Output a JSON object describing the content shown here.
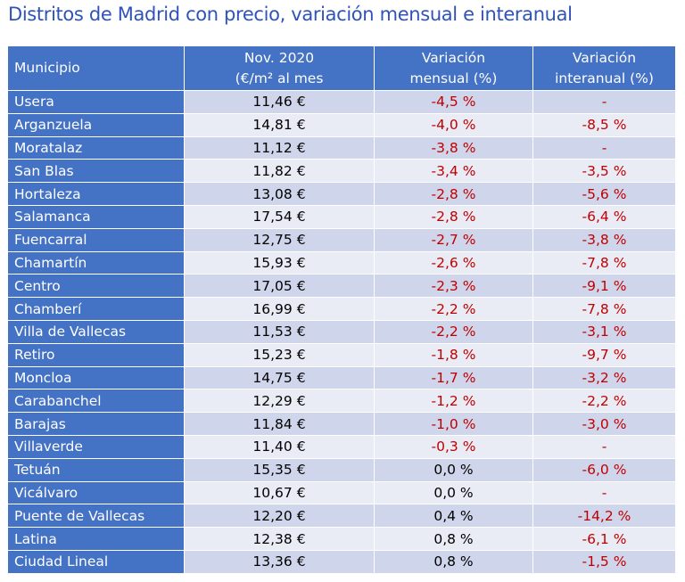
{
  "title": "Distritos de Madrid con precio, variación mensual e interanual",
  "headers": {
    "municipio": "Municipio",
    "price_line1": "Nov. 2020",
    "price_line2": "(€/m² al mes",
    "monthly_line1": "Variación",
    "monthly_line2": "mensual (%)",
    "annual_line1": "Variación",
    "annual_line2": "interanual (%)"
  },
  "colors": {
    "header_bg": "#4472c4",
    "row_odd": "#cfd5ea",
    "row_even": "#e9ebf5",
    "negative": "#c00000",
    "title": "#2f53b8"
  },
  "rows": [
    {
      "name": "Usera",
      "price": "11,46 €",
      "monthly": "-4,5 %",
      "annual": "-"
    },
    {
      "name": "Arganzuela",
      "price": "14,81 €",
      "monthly": "-4,0 %",
      "annual": "-8,5 %"
    },
    {
      "name": "Moratalaz",
      "price": "11,12 €",
      "monthly": "-3,8 %",
      "annual": "-"
    },
    {
      "name": "San Blas",
      "price": "11,82 €",
      "monthly": "-3,4 %",
      "annual": "-3,5 %"
    },
    {
      "name": "Hortaleza",
      "price": "13,08 €",
      "monthly": "-2,8 %",
      "annual": "-5,6 %"
    },
    {
      "name": "Salamanca",
      "price": "17,54 €",
      "monthly": "-2,8 %",
      "annual": "-6,4 %"
    },
    {
      "name": "Fuencarral",
      "price": "12,75 €",
      "monthly": "-2,7 %",
      "annual": "-3,8 %"
    },
    {
      "name": "Chamartín",
      "price": "15,93 €",
      "monthly": "-2,6 %",
      "annual": "-7,8 %"
    },
    {
      "name": "Centro",
      "price": "17,05 €",
      "monthly": "-2,3 %",
      "annual": "-9,1 %"
    },
    {
      "name": "Chamberí",
      "price": "16,99 €",
      "monthly": "-2,2 %",
      "annual": "-7,8 %"
    },
    {
      "name": "Villa de Vallecas",
      "price": "11,53 €",
      "monthly": "-2,2 %",
      "annual": "-3,1 %"
    },
    {
      "name": "Retiro",
      "price": "15,23 €",
      "monthly": "-1,8 %",
      "annual": "-9,7 %"
    },
    {
      "name": "Moncloa",
      "price": "14,75 €",
      "monthly": "-1,7 %",
      "annual": "-3,2 %"
    },
    {
      "name": "Carabanchel",
      "price": "12,29 €",
      "monthly": "-1,2 %",
      "annual": "-2,2 %"
    },
    {
      "name": "Barajas",
      "price": "11,84 €",
      "monthly": "-1,0 %",
      "annual": "-3,0 %"
    },
    {
      "name": "Villaverde",
      "price": "11,40 €",
      "monthly": "-0,3 %",
      "annual": "-"
    },
    {
      "name": "Tetuán",
      "price": "15,35 €",
      "monthly": "0,0 %",
      "annual": "-6,0 %"
    },
    {
      "name": "Vicálvaro",
      "price": "10,67 €",
      "monthly": "0,0 %",
      "annual": "-"
    },
    {
      "name": "Puente de Vallecas",
      "price": "12,20 €",
      "monthly": "0,4 %",
      "annual": "-14,2 %"
    },
    {
      "name": "Latina",
      "price": "12,38 €",
      "monthly": "0,8 %",
      "annual": "-6,1 %"
    },
    {
      "name": "Ciudad Lineal",
      "price": "13,36 €",
      "monthly": "0,8 %",
      "annual": "-1,5 %"
    }
  ]
}
